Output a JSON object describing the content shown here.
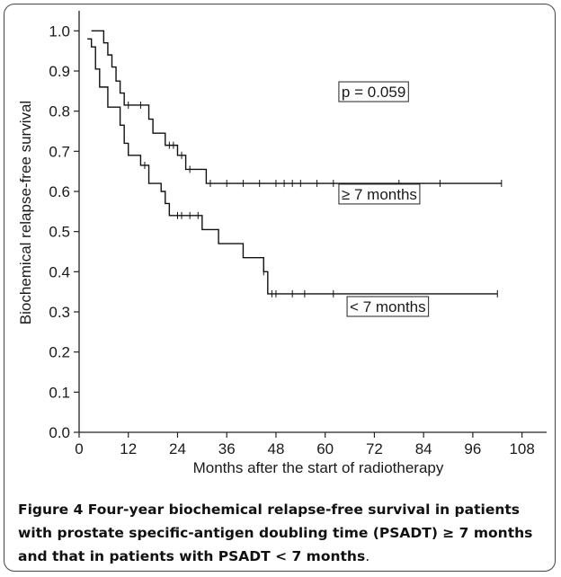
{
  "chart_data": {
    "type": "line",
    "title": "",
    "xlabel": "Months after the start of radiotherapy",
    "ylabel": "Biochemical relapse-free survival",
    "xlim": [
      0,
      114
    ],
    "ylim": [
      0.0,
      1.05
    ],
    "x_ticks": [
      "0",
      "12",
      "24",
      "36",
      "48",
      "60",
      "72",
      "84",
      "96",
      "108"
    ],
    "y_ticks": [
      "0.0",
      "0.1",
      "0.2",
      "0.3",
      "0.4",
      "0.5",
      "0.6",
      "0.7",
      "0.8",
      "0.9",
      "1.0"
    ],
    "grid": false,
    "step": true,
    "series": [
      {
        "name": "≥ 7 months",
        "steps": [
          [
            3,
            1.0
          ],
          [
            6,
            0.97
          ],
          [
            7,
            0.94
          ],
          [
            8,
            0.91
          ],
          [
            9,
            0.875
          ],
          [
            10,
            0.845
          ],
          [
            11,
            0.815
          ],
          [
            17,
            0.78
          ],
          [
            18,
            0.745
          ],
          [
            21,
            0.715
          ],
          [
            24,
            0.69
          ],
          [
            26,
            0.655
          ],
          [
            31,
            0.62
          ],
          [
            103,
            0.62
          ]
        ],
        "censored": [
          12,
          15,
          22,
          23,
          25,
          27,
          32,
          36,
          40,
          44,
          48,
          50,
          52,
          54,
          58,
          62,
          78,
          88,
          103
        ]
      },
      {
        "name": "< 7 months",
        "steps": [
          [
            2,
            0.98
          ],
          [
            3,
            0.96
          ],
          [
            4,
            0.905
          ],
          [
            5,
            0.86
          ],
          [
            7,
            0.81
          ],
          [
            10,
            0.765
          ],
          [
            11,
            0.72
          ],
          [
            12,
            0.69
          ],
          [
            15,
            0.665
          ],
          [
            17,
            0.62
          ],
          [
            20,
            0.6
          ],
          [
            21,
            0.57
          ],
          [
            22,
            0.54
          ],
          [
            30,
            0.505
          ],
          [
            34,
            0.47
          ],
          [
            40,
            0.435
          ],
          [
            45,
            0.4
          ],
          [
            46,
            0.345
          ],
          [
            102,
            0.345
          ]
        ],
        "censored": [
          16,
          24,
          25,
          27,
          29,
          45,
          47,
          48,
          52,
          55,
          62,
          102
        ]
      }
    ],
    "annotations": [
      {
        "text": "p = 0.059",
        "at": [
          64,
          0.835
        ]
      },
      {
        "text": "≥ 7 months",
        "at": [
          64,
          0.58
        ]
      },
      {
        "text": "< 7 months",
        "at": [
          66,
          0.3
        ]
      }
    ]
  },
  "caption": {
    "lead": "Figure 4",
    "body": " Four-year biochemical relapse-free survival in patients with prostate specific-antigen doubling time (PSADT) ≥ 7 months and that in patients with PSADT < 7 months",
    "period": "."
  }
}
